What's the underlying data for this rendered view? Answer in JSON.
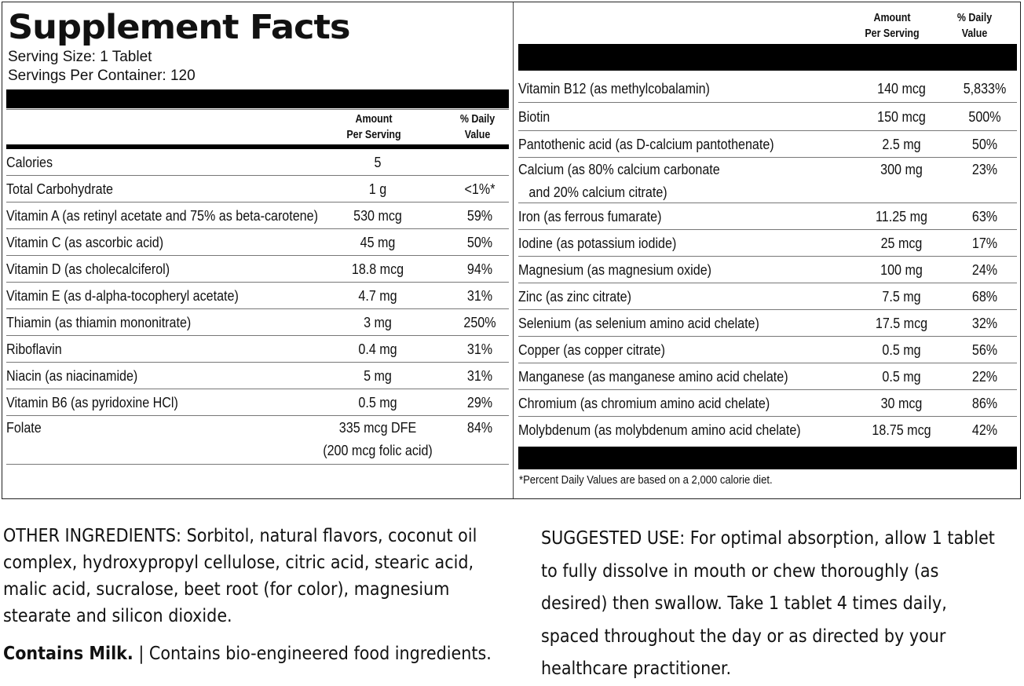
{
  "panel": {
    "title": "Supplement Facts",
    "serving_size": "Serving Size: 1 Tablet",
    "servings_per_container": "Servings Per Container: 120",
    "col_amount_1": "Amount",
    "col_amount_2": "Per Serving",
    "col_dv_1": "% Daily",
    "col_dv_2": "Value",
    "left_rows": [
      {
        "name": "Calories",
        "amount": "5",
        "dv": ""
      },
      {
        "name": "Total Carbohydrate",
        "amount": "1 g",
        "dv": "<1%*"
      },
      {
        "name": "Vitamin A (as retinyl acetate and 75% as beta-carotene)",
        "amount": "530 mcg",
        "dv": "59%"
      },
      {
        "name": "Vitamin C (as ascorbic acid)",
        "amount": "45 mg",
        "dv": "50%"
      },
      {
        "name": "Vitamin D (as cholecalciferol)",
        "amount": "18.8 mcg",
        "dv": "94%"
      },
      {
        "name": "Vitamin E (as d-alpha-tocopheryl acetate)",
        "amount": "4.7 mg",
        "dv": "31%"
      },
      {
        "name": "Thiamin (as thiamin mononitrate)",
        "amount": "3 mg",
        "dv": "250%"
      },
      {
        "name": "Riboflavin",
        "amount": "0.4 mg",
        "dv": "31%"
      },
      {
        "name": "Niacin (as niacinamide)",
        "amount": "5 mg",
        "dv": "31%"
      },
      {
        "name": "Vitamin B6 (as pyridoxine HCl)",
        "amount": "0.5 mg",
        "dv": "29%"
      },
      {
        "name": "Folate",
        "amount": "335 mcg DFE\n(200 mcg folic acid)",
        "dv": "84%"
      }
    ],
    "right_rows": [
      {
        "name": "Vitamin B12 (as methylcobalamin)",
        "amount": "140 mcg",
        "dv": "5,833%"
      },
      {
        "name": "Biotin",
        "amount": "150 mcg",
        "dv": "500%"
      },
      {
        "name": "Pantothenic acid (as D-calcium pantothenate)",
        "amount": "2.5 mg",
        "dv": "50%"
      },
      {
        "name": "Calcium (as 80% calcium carbonate\n   and 20% calcium citrate)",
        "amount": "300 mg",
        "dv": "23%"
      },
      {
        "name": "Iron (as ferrous fumarate)",
        "amount": "11.25 mg",
        "dv": "63%"
      },
      {
        "name": "Iodine (as potassium iodide)",
        "amount": "25 mcg",
        "dv": "17%"
      },
      {
        "name": "Magnesium (as magnesium oxide)",
        "amount": "100 mg",
        "dv": "24%"
      },
      {
        "name": "Zinc (as zinc citrate)",
        "amount": "7.5 mg",
        "dv": "68%"
      },
      {
        "name": "Selenium (as selenium amino acid chelate)",
        "amount": "17.5 mcg",
        "dv": "32%"
      },
      {
        "name": "Copper (as copper citrate)",
        "amount": "0.5 mg",
        "dv": "56%"
      },
      {
        "name": "Manganese (as manganese amino acid chelate)",
        "amount": "0.5 mg",
        "dv": "22%"
      },
      {
        "name": "Chromium (as chromium amino acid chelate)",
        "amount": "30 mcg",
        "dv": "86%"
      },
      {
        "name": "Molybdenum (as molybdenum amino acid chelate)",
        "amount": "18.75 mcg",
        "dv": "42%"
      }
    ],
    "footnote": "*Percent Daily Values are based on a 2,000 calorie diet."
  },
  "other_ingredients": "OTHER INGREDIENTS: Sorbitol, natural flavors, coconut oil complex, hydroxypropyl cellulose, citric acid, stearic acid, malic acid, sucralose, beet root (for color), magnesium stearate and silicon dioxide.",
  "contains_bold": "Contains Milk.",
  "contains_rest": " | Contains bio-engineered food ingredients.",
  "suggested_use": "SUGGESTED USE: For optimal absorption, allow 1 tablet to fully dissolve in mouth or chew thoroughly (as desired) then swallow. Take 1 tablet 4 times daily, spaced throughout the day or as directed by your healthcare practitioner."
}
